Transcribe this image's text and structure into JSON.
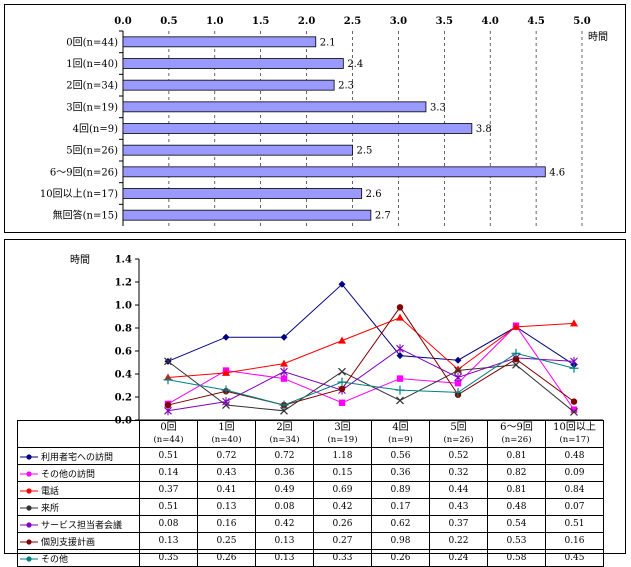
{
  "chart_data": [
    {
      "type": "bar",
      "orientation": "horizontal",
      "categories": [
        "0回(n=44)",
        "1回(n=40)",
        "2回(n=34)",
        "3回(n=19)",
        "4回(n=9)",
        "5回(n=26)",
        "6～9回(n=26)",
        "10回以上(n=17)",
        "無回答(n=15)"
      ],
      "values": [
        2.1,
        2.4,
        2.3,
        3.3,
        3.8,
        2.5,
        4.6,
        2.6,
        2.7
      ],
      "value_labels": [
        "2.1",
        "2.4",
        "2.3",
        "3.3",
        "3.8",
        "2.5",
        "4.6",
        "2.6",
        "2.7"
      ],
      "x_ticks": [
        "0.0",
        "0.5",
        "1.0",
        "1.5",
        "2.0",
        "2.5",
        "3.0",
        "3.5",
        "4.0",
        "4.5",
        "5.0"
      ],
      "xlim": [
        0,
        5
      ],
      "unit_label": "時間",
      "bar_color": "#9999ff",
      "grid": "vertical dashed"
    },
    {
      "type": "line",
      "categories": [
        "0回\n(n=44)",
        "1回\n(n=40)",
        "2回\n(n=34)",
        "3回\n(n=19)",
        "4回\n(n=9)",
        "5回\n(n=26)",
        "6～9回\n(n=26)",
        "10回以上\n(n=17)"
      ],
      "category_lines": [
        [
          "0回",
          "(n=44)"
        ],
        [
          "1回",
          "(n=40)"
        ],
        [
          "2回",
          "(n=34)"
        ],
        [
          "3回",
          "(n=19)"
        ],
        [
          "4回",
          "(n=9)"
        ],
        [
          "5回",
          "(n=26)"
        ],
        [
          "6～9回",
          "(n=26)"
        ],
        [
          "10回以上",
          "(n=17)"
        ]
      ],
      "y_ticks": [
        "0.0",
        "0.2",
        "0.4",
        "0.6",
        "0.8",
        "1.0",
        "1.2",
        "1.4"
      ],
      "ylim": [
        0,
        1.4
      ],
      "unit_label": "時間",
      "legend": "table-below",
      "series": [
        {
          "name": "利用者宅への訪問",
          "color": "#000080",
          "marker": "diamond",
          "values": [
            0.51,
            0.72,
            0.72,
            1.18,
            0.56,
            0.52,
            0.81,
            0.48
          ],
          "labels": [
            "0.51",
            "0.72",
            "0.72",
            "1.18",
            "0.56",
            "0.52",
            "0.81",
            "0.48"
          ]
        },
        {
          "name": "その他の訪問",
          "color": "#ff00ff",
          "marker": "square",
          "values": [
            0.14,
            0.43,
            0.36,
            0.15,
            0.36,
            0.32,
            0.82,
            0.09
          ],
          "labels": [
            "0.14",
            "0.43",
            "0.36",
            "0.15",
            "0.36",
            "0.32",
            "0.82",
            "0.09"
          ]
        },
        {
          "name": "電話",
          "color": "#ff0000",
          "marker": "triangle",
          "values": [
            0.37,
            0.41,
            0.49,
            0.69,
            0.89,
            0.44,
            0.81,
            0.84
          ],
          "labels": [
            "0.37",
            "0.41",
            "0.49",
            "0.69",
            "0.89",
            "0.44",
            "0.81",
            "0.84"
          ]
        },
        {
          "name": "来所",
          "color": "#333333",
          "marker": "x",
          "values": [
            0.51,
            0.13,
            0.08,
            0.42,
            0.17,
            0.43,
            0.48,
            0.07
          ],
          "labels": [
            "0.51",
            "0.13",
            "0.08",
            "0.42",
            "0.17",
            "0.43",
            "0.48",
            "0.07"
          ]
        },
        {
          "name": "サービス担当者会議",
          "color": "#8000c0",
          "marker": "star",
          "values": [
            0.08,
            0.16,
            0.42,
            0.26,
            0.62,
            0.37,
            0.54,
            0.51
          ],
          "labels": [
            "0.08",
            "0.16",
            "0.42",
            "0.26",
            "0.62",
            "0.37",
            "0.54",
            "0.51"
          ]
        },
        {
          "name": "個別支援計画",
          "color": "#800000",
          "marker": "circle",
          "values": [
            0.13,
            0.25,
            0.13,
            0.27,
            0.98,
            0.22,
            0.53,
            0.16
          ],
          "labels": [
            "0.13",
            "0.25",
            "0.13",
            "0.27",
            "0.98",
            "0.22",
            "0.53",
            "0.16"
          ]
        },
        {
          "name": "その他",
          "color": "#008080",
          "marker": "plus",
          "values": [
            0.35,
            0.26,
            0.13,
            0.33,
            0.26,
            0.24,
            0.58,
            0.45
          ],
          "labels": [
            "0.35",
            "0.26",
            "0.13",
            "0.33",
            "0.26",
            "0.24",
            "0.58",
            "0.45"
          ]
        }
      ]
    }
  ]
}
